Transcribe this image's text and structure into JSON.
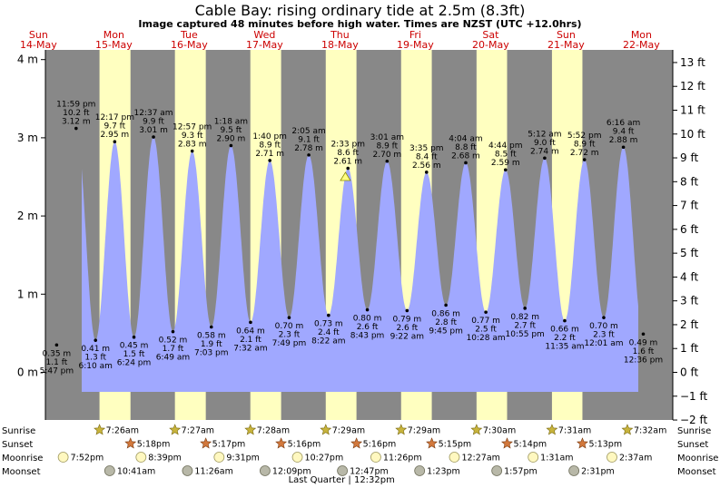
{
  "header": {
    "title": "Cable Bay: rising  ordinary tide at 2.5m (8.3ft)",
    "subtitle": "Image captured 48 minutes before high water. Times are NZST (UTC +12.0hrs)"
  },
  "chart_data": {
    "type": "area",
    "title": "Cable Bay: rising  ordinary tide at 2.5m (8.3ft)",
    "x_unit": "hours since 14-May 00:00 NZST",
    "xlim": [
      14.2,
      214.0
    ],
    "ylim_m": [
      -0.6,
      4.1
    ],
    "ylim_ft": [
      -2,
      13
    ],
    "y_ticks_m": [
      "0 m",
      "1 m",
      "2 m",
      "3 m",
      "4 m"
    ],
    "y_tick_values_m": [
      0,
      1,
      2,
      3,
      4
    ],
    "y_ticks_ft": [
      "−2 ft",
      "−1 ft",
      "0 ft",
      "1 ft",
      "2 ft",
      "3 ft",
      "4 ft",
      "5 ft",
      "6 ft",
      "7 ft",
      "8 ft",
      "9 ft",
      "10 ft",
      "11 ft",
      "12 ft",
      "13 ft"
    ],
    "y_tick_values_ft": [
      -2,
      -1,
      0,
      1,
      2,
      3,
      4,
      5,
      6,
      7,
      8,
      9,
      10,
      11,
      12,
      13
    ],
    "days": [
      {
        "dow": "Sun",
        "date": "14-May"
      },
      {
        "dow": "Mon",
        "date": "15-May"
      },
      {
        "dow": "Tue",
        "date": "16-May"
      },
      {
        "dow": "Wed",
        "date": "17-May"
      },
      {
        "dow": "Thu",
        "date": "18-May"
      },
      {
        "dow": "Fri",
        "date": "19-May"
      },
      {
        "dow": "Sat",
        "date": "20-May"
      },
      {
        "dow": "Sun",
        "date": "21-May"
      },
      {
        "dow": "Mon",
        "date": "22-May"
      }
    ],
    "daylight": [
      {
        "sunrise": 31.43,
        "sunset": 41.3
      },
      {
        "sunrise": 55.45,
        "sunset": 65.28
      },
      {
        "sunrise": 79.47,
        "sunset": 89.27
      },
      {
        "sunrise": 103.48,
        "sunset": 113.27
      },
      {
        "sunrise": 127.48,
        "sunset": 137.25
      },
      {
        "sunrise": 151.5,
        "sunset": 161.23
      },
      {
        "sunrise": 175.52,
        "sunset": 185.22
      }
    ],
    "extremes": [
      {
        "t": 17.78,
        "m": 0.35,
        "type": "low",
        "lines": [
          "0.35 m",
          "1.1 ft",
          "5:47 pm"
        ]
      },
      {
        "t": 23.98,
        "m": 3.12,
        "type": "high",
        "lines": [
          "11:59 pm",
          "10.2 ft",
          "3.12 m"
        ]
      },
      {
        "t": 30.17,
        "m": 0.41,
        "type": "low",
        "lines": [
          "0.41 m",
          "1.3 ft",
          "6:10 am"
        ]
      },
      {
        "t": 36.28,
        "m": 2.95,
        "type": "high",
        "lines": [
          "12:17 pm",
          "9.7 ft",
          "2.95 m"
        ]
      },
      {
        "t": 42.4,
        "m": 0.45,
        "type": "low",
        "lines": [
          "0.45 m",
          "1.5 ft",
          "6:24 pm"
        ]
      },
      {
        "t": 48.62,
        "m": 3.01,
        "type": "high",
        "lines": [
          "12:37 am",
          "9.9 ft",
          "3.01 m"
        ]
      },
      {
        "t": 54.82,
        "m": 0.52,
        "type": "low",
        "lines": [
          "0.52 m",
          "1.7 ft",
          "6:49 am"
        ]
      },
      {
        "t": 60.95,
        "m": 2.83,
        "type": "high",
        "lines": [
          "12:57 pm",
          "9.3 ft",
          "2.83 m"
        ]
      },
      {
        "t": 67.05,
        "m": 0.58,
        "type": "low",
        "lines": [
          "0.58 m",
          "1.9 ft",
          "7:03 pm"
        ]
      },
      {
        "t": 73.3,
        "m": 2.9,
        "type": "high",
        "lines": [
          "1:18 am",
          "9.5 ft",
          "2.90 m"
        ]
      },
      {
        "t": 79.53,
        "m": 0.64,
        "type": "low",
        "lines": [
          "0.64 m",
          "2.1 ft",
          "7:32 am"
        ]
      },
      {
        "t": 85.67,
        "m": 2.71,
        "type": "high",
        "lines": [
          "1:40 pm",
          "8.9 ft",
          "2.71 m"
        ]
      },
      {
        "t": 91.82,
        "m": 0.7,
        "type": "low",
        "lines": [
          "0.70 m",
          "2.3 ft",
          "7:49 pm"
        ]
      },
      {
        "t": 98.08,
        "m": 2.78,
        "type": "high",
        "lines": [
          "2:05 am",
          "9.1 ft",
          "2.78 m"
        ]
      },
      {
        "t": 104.37,
        "m": 0.73,
        "type": "low",
        "lines": [
          "0.73 m",
          "2.4 ft",
          "8:22 am"
        ]
      },
      {
        "t": 110.55,
        "m": 2.61,
        "type": "high",
        "lines": [
          "2:33 pm",
          "8.6 ft",
          "2.61 m"
        ]
      },
      {
        "t": 116.72,
        "m": 0.8,
        "type": "low",
        "lines": [
          "0.80 m",
          "2.6 ft",
          "8:43 pm"
        ]
      },
      {
        "t": 123.02,
        "m": 2.7,
        "type": "high",
        "lines": [
          "3:01 am",
          "8.9 ft",
          "2.70 m"
        ]
      },
      {
        "t": 129.37,
        "m": 0.79,
        "type": "low",
        "lines": [
          "0.79 m",
          "2.6 ft",
          "9:22 am"
        ]
      },
      {
        "t": 135.58,
        "m": 2.56,
        "type": "high",
        "lines": [
          "3:35 pm",
          "8.4 ft",
          "2.56 m"
        ]
      },
      {
        "t": 141.75,
        "m": 0.86,
        "type": "low",
        "lines": [
          "0.86 m",
          "2.8 ft",
          "9:45 pm"
        ]
      },
      {
        "t": 148.07,
        "m": 2.68,
        "type": "high",
        "lines": [
          "4:04 am",
          "8.8 ft",
          "2.68 m"
        ]
      },
      {
        "t": 154.47,
        "m": 0.77,
        "type": "low",
        "lines": [
          "0.77 m",
          "2.5 ft",
          "10:28 am"
        ]
      },
      {
        "t": 160.73,
        "m": 2.59,
        "type": "high",
        "lines": [
          "4:44 pm",
          "8.5 ft",
          "2.59 m"
        ]
      },
      {
        "t": 166.92,
        "m": 0.82,
        "type": "low",
        "lines": [
          "0.82 m",
          "2.7 ft",
          "10:55 pm"
        ]
      },
      {
        "t": 173.2,
        "m": 2.74,
        "type": "high",
        "lines": [
          "5:12 am",
          "9.0 ft",
          "2.74 m"
        ]
      },
      {
        "t": 179.58,
        "m": 0.66,
        "type": "low",
        "lines": [
          "0.66 m",
          "2.2 ft",
          "11:35 am"
        ]
      },
      {
        "t": 185.87,
        "m": 2.72,
        "type": "high",
        "lines": [
          "5:52 pm",
          "8.9 ft",
          "2.72 m"
        ]
      },
      {
        "t": 192.02,
        "m": 0.7,
        "type": "low",
        "lines": [
          "0.70 m",
          "2.3 ft",
          "12:01 am"
        ]
      },
      {
        "t": 198.27,
        "m": 2.88,
        "type": "high",
        "lines": [
          "6:16 am",
          "9.4 ft",
          "2.88 m"
        ]
      },
      {
        "t": 204.6,
        "m": 0.49,
        "type": "low",
        "lines": [
          "0.49 m",
          "1.6 ft",
          "12:36 pm"
        ]
      }
    ],
    "current": {
      "t": 109.75,
      "m": 2.5
    },
    "astro": {
      "row_labels": [
        "Sunrise",
        "Sunset",
        "Moonrise",
        "Moonset"
      ],
      "sunrise": [
        {
          "t": 31.43,
          "label": "7:26am"
        },
        {
          "t": 55.45,
          "label": "7:27am"
        },
        {
          "t": 79.47,
          "label": "7:28am"
        },
        {
          "t": 103.48,
          "label": "7:29am"
        },
        {
          "t": 127.48,
          "label": "7:29am"
        },
        {
          "t": 151.5,
          "label": "7:30am"
        },
        {
          "t": 175.52,
          "label": "7:31am"
        },
        {
          "t": 199.53,
          "label": "7:32am"
        }
      ],
      "sunset": [
        {
          "t": 41.3,
          "label": "5:18pm"
        },
        {
          "t": 65.28,
          "label": "5:17pm"
        },
        {
          "t": 89.27,
          "label": "5:16pm"
        },
        {
          "t": 113.27,
          "label": "5:16pm"
        },
        {
          "t": 137.25,
          "label": "5:15pm"
        },
        {
          "t": 161.23,
          "label": "5:14pm"
        },
        {
          "t": 185.22,
          "label": "5:13pm"
        }
      ],
      "moonrise": [
        {
          "t": 19.87,
          "label": "7:52pm"
        },
        {
          "t": 44.65,
          "label": "8:39pm"
        },
        {
          "t": 69.52,
          "label": "9:31pm"
        },
        {
          "t": 94.45,
          "label": "10:27pm"
        },
        {
          "t": 119.43,
          "label": "11:26pm"
        },
        {
          "t": 144.45,
          "label": "12:27am"
        },
        {
          "t": 169.52,
          "label": "1:31am"
        },
        {
          "t": 194.62,
          "label": "2:37am"
        }
      ],
      "moonset": [
        {
          "t": 34.68,
          "label": "10:41am"
        },
        {
          "t": 59.43,
          "label": "11:26am"
        },
        {
          "t": 84.15,
          "label": "12:09pm"
        },
        {
          "t": 108.78,
          "label": "12:47pm"
        },
        {
          "t": 133.38,
          "label": "1:23pm"
        },
        {
          "t": 157.95,
          "label": "1:57pm"
        },
        {
          "t": 182.52,
          "label": "2:31pm"
        }
      ]
    },
    "moon_phase": {
      "t": 108.53,
      "label": "Last Quarter | 12:32pm"
    },
    "colors": {
      "night": "#888888",
      "day": "#ffffc0",
      "water": "#a0a8ff",
      "day_label": "#cc0000",
      "sunrise_star": "#c8b43c",
      "sunset_star": "#d2783c",
      "moonrise": "#fff8c0",
      "moonset": "#b8b8a8"
    }
  }
}
